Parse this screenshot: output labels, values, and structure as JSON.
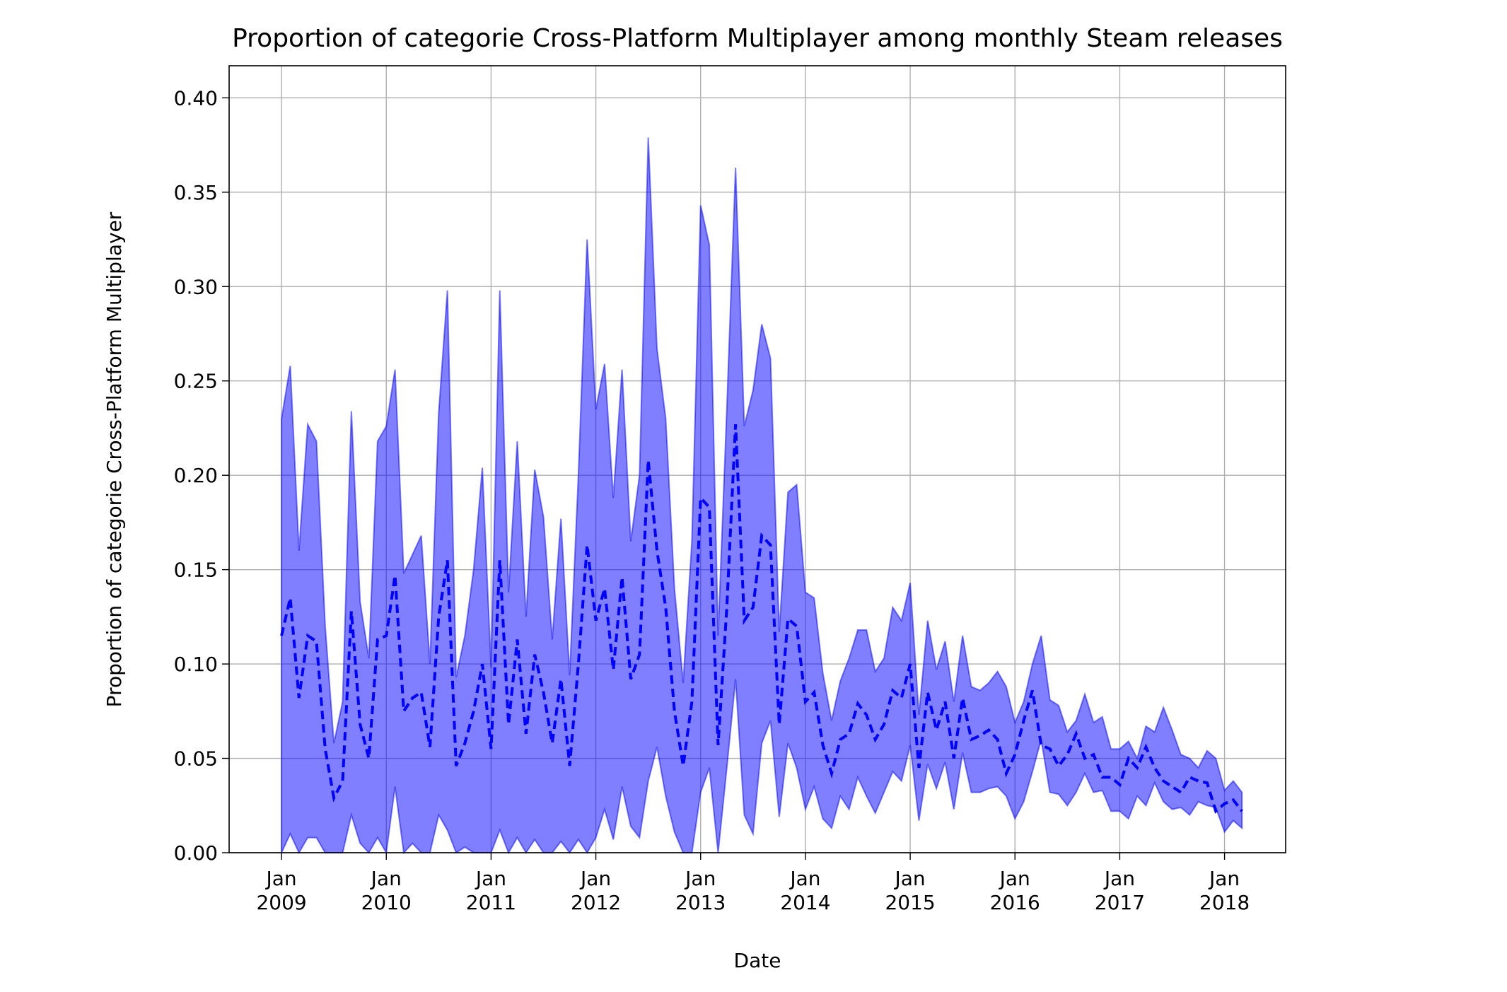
{
  "chart_data": {
    "type": "line-band",
    "title": "Proportion of categorie Cross-Platform Multiplayer among monthly Steam releases",
    "xlabel": "Date",
    "ylabel": "Proportion of categorie Cross-Platform Multiplayer",
    "x": [
      "2009-01",
      "2009-02",
      "2009-03",
      "2009-04",
      "2009-05",
      "2009-06",
      "2009-07",
      "2009-08",
      "2009-09",
      "2009-10",
      "2009-11",
      "2009-12",
      "2010-01",
      "2010-02",
      "2010-03",
      "2010-04",
      "2010-05",
      "2010-06",
      "2010-07",
      "2010-08",
      "2010-09",
      "2010-10",
      "2010-11",
      "2010-12",
      "2011-01",
      "2011-02",
      "2011-03",
      "2011-04",
      "2011-05",
      "2011-06",
      "2011-07",
      "2011-08",
      "2011-09",
      "2011-10",
      "2011-11",
      "2011-12",
      "2012-01",
      "2012-02",
      "2012-03",
      "2012-04",
      "2012-05",
      "2012-06",
      "2012-07",
      "2012-08",
      "2012-09",
      "2012-10",
      "2012-11",
      "2012-12",
      "2013-01",
      "2013-02",
      "2013-03",
      "2013-04",
      "2013-05",
      "2013-06",
      "2013-07",
      "2013-08",
      "2013-09",
      "2013-10",
      "2013-11",
      "2013-12",
      "2014-01",
      "2014-02",
      "2014-03",
      "2014-04",
      "2014-05",
      "2014-06",
      "2014-07",
      "2014-08",
      "2014-09",
      "2014-10",
      "2014-11",
      "2014-12",
      "2015-01",
      "2015-02",
      "2015-03",
      "2015-04",
      "2015-05",
      "2015-06",
      "2015-07",
      "2015-08",
      "2015-09",
      "2015-10",
      "2015-11",
      "2015-12",
      "2016-01",
      "2016-02",
      "2016-03",
      "2016-04",
      "2016-05",
      "2016-06",
      "2016-07",
      "2016-08",
      "2016-09",
      "2016-10",
      "2016-11",
      "2016-12",
      "2017-01",
      "2017-02",
      "2017-03",
      "2017-04",
      "2017-05",
      "2017-06",
      "2017-07",
      "2017-08",
      "2017-09",
      "2017-10",
      "2017-11",
      "2017-12",
      "2018-01",
      "2018-02",
      "2018-03"
    ],
    "series": [
      {
        "color": "#0000ff",
        "band_alpha": 0.5,
        "values": [
          0.115,
          0.135,
          0.082,
          0.115,
          0.112,
          0.055,
          0.029,
          0.038,
          0.128,
          0.068,
          0.05,
          0.113,
          0.115,
          0.147,
          0.075,
          0.082,
          0.085,
          0.056,
          0.125,
          0.155,
          0.046,
          0.058,
          0.075,
          0.1,
          0.055,
          0.155,
          0.068,
          0.113,
          0.063,
          0.105,
          0.085,
          0.058,
          0.092,
          0.046,
          0.1,
          0.163,
          0.123,
          0.14,
          0.097,
          0.146,
          0.092,
          0.105,
          0.208,
          0.16,
          0.13,
          0.075,
          0.046,
          0.08,
          0.188,
          0.183,
          0.057,
          0.13,
          0.227,
          0.123,
          0.13,
          0.168,
          0.163,
          0.068,
          0.124,
          0.12,
          0.08,
          0.085,
          0.057,
          0.042,
          0.06,
          0.063,
          0.079,
          0.073,
          0.06,
          0.068,
          0.086,
          0.082,
          0.1,
          0.045,
          0.085,
          0.065,
          0.08,
          0.05,
          0.082,
          0.06,
          0.062,
          0.065,
          0.06,
          0.042,
          0.052,
          0.07,
          0.086,
          0.057,
          0.055,
          0.046,
          0.052,
          0.063,
          0.05,
          0.052,
          0.04,
          0.04,
          0.036,
          0.05,
          0.045,
          0.056,
          0.045,
          0.038,
          0.035,
          0.032,
          0.04,
          0.038,
          0.037,
          0.022,
          0.026,
          0.028,
          0.022
        ],
        "upper": [
          0.23,
          0.258,
          0.16,
          0.227,
          0.218,
          0.12,
          0.058,
          0.08,
          0.234,
          0.133,
          0.103,
          0.218,
          0.226,
          0.256,
          0.148,
          0.158,
          0.168,
          0.1,
          0.233,
          0.298,
          0.093,
          0.115,
          0.15,
          0.204,
          0.098,
          0.298,
          0.138,
          0.218,
          0.125,
          0.203,
          0.178,
          0.113,
          0.177,
          0.094,
          0.2,
          0.325,
          0.235,
          0.259,
          0.188,
          0.256,
          0.165,
          0.2,
          0.379,
          0.267,
          0.23,
          0.14,
          0.09,
          0.165,
          0.343,
          0.322,
          0.115,
          0.235,
          0.363,
          0.226,
          0.245,
          0.28,
          0.262,
          0.117,
          0.191,
          0.195,
          0.138,
          0.135,
          0.095,
          0.07,
          0.091,
          0.103,
          0.118,
          0.118,
          0.096,
          0.103,
          0.13,
          0.123,
          0.143,
          0.073,
          0.123,
          0.097,
          0.112,
          0.08,
          0.115,
          0.088,
          0.086,
          0.09,
          0.096,
          0.088,
          0.069,
          0.08,
          0.1,
          0.115,
          0.081,
          0.078,
          0.064,
          0.07,
          0.084,
          0.069,
          0.072,
          0.055,
          0.055,
          0.059,
          0.05,
          0.067,
          0.064,
          0.077,
          0.065,
          0.052,
          0.05,
          0.045,
          0.054,
          0.05,
          0.033,
          0.038,
          0.032
        ],
        "lower": [
          0,
          0.01,
          0,
          0.008,
          0.008,
          0,
          0,
          0,
          0.02,
          0.005,
          0,
          0.008,
          0,
          0.035,
          0,
          0.005,
          0,
          0,
          0.02,
          0.012,
          0,
          0.003,
          0,
          0,
          0,
          0.012,
          0,
          0.008,
          0,
          0.007,
          0,
          0,
          0.006,
          0,
          0.007,
          0,
          0.008,
          0.023,
          0.007,
          0.035,
          0.014,
          0.008,
          0.038,
          0.056,
          0.03,
          0.011,
          0,
          0,
          0.032,
          0.045,
          0,
          0.045,
          0.092,
          0.02,
          0.01,
          0.058,
          0.07,
          0.019,
          0.058,
          0.045,
          0.023,
          0.035,
          0.018,
          0.013,
          0.03,
          0.023,
          0.04,
          0.03,
          0.021,
          0.032,
          0.043,
          0.038,
          0.057,
          0.017,
          0.047,
          0.034,
          0.048,
          0.023,
          0.053,
          0.032,
          0.032,
          0.034,
          0.035,
          0.03,
          0.018,
          0.027,
          0.043,
          0.06,
          0.032,
          0.031,
          0.025,
          0.032,
          0.042,
          0.032,
          0.033,
          0.022,
          0.022,
          0.018,
          0.03,
          0.025,
          0.037,
          0.027,
          0.023,
          0.024,
          0.02,
          0.027,
          0.025,
          0.024,
          0.011,
          0.017,
          0.013
        ]
      }
    ],
    "xlim": [
      "2008-07",
      "2018-08"
    ],
    "xticks": [
      {
        "value": "2009-01",
        "label": "Jan\n2009"
      },
      {
        "value": "2010-01",
        "label": "Jan\n2010"
      },
      {
        "value": "2011-01",
        "label": "Jan\n2011"
      },
      {
        "value": "2012-01",
        "label": "Jan\n2012"
      },
      {
        "value": "2013-01",
        "label": "Jan\n2013"
      },
      {
        "value": "2014-01",
        "label": "Jan\n2014"
      },
      {
        "value": "2015-01",
        "label": "Jan\n2015"
      },
      {
        "value": "2016-01",
        "label": "Jan\n2016"
      },
      {
        "value": "2017-01",
        "label": "Jan\n2017"
      },
      {
        "value": "2018-01",
        "label": "Jan\n2018"
      }
    ],
    "ylim": [
      0,
      0.417
    ],
    "yticks": [
      {
        "value": 0,
        "label": "0.00"
      },
      {
        "value": 0.05,
        "label": "0.05"
      },
      {
        "value": 0.1,
        "label": "0.10"
      },
      {
        "value": 0.15,
        "label": "0.15"
      },
      {
        "value": 0.2,
        "label": "0.20"
      },
      {
        "value": 0.25,
        "label": "0.25"
      },
      {
        "value": 0.3,
        "label": "0.30"
      },
      {
        "value": 0.35,
        "label": "0.35"
      },
      {
        "value": 0.4,
        "label": "0.40"
      }
    ],
    "grid": true
  }
}
